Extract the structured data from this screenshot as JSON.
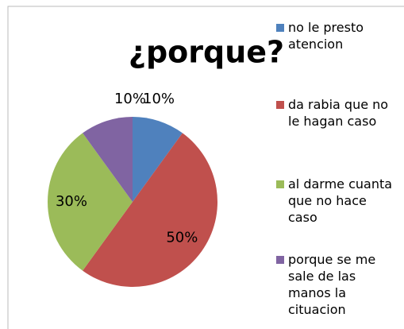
{
  "chart_data": {
    "type": "pie",
    "title": "¿porque?",
    "categories": [
      "no le presto atencion",
      "da rabia que no le hagan caso",
      "al darme cuanta que no hace caso",
      "porque se me sale de las manos la cituacion"
    ],
    "values": [
      10,
      50,
      30,
      10
    ],
    "value_labels": [
      "10%",
      "50%",
      "30%",
      "10%"
    ],
    "colors": [
      "#4f81bd",
      "#c0504d",
      "#9bbb59",
      "#8064a2"
    ],
    "legend": "right"
  }
}
